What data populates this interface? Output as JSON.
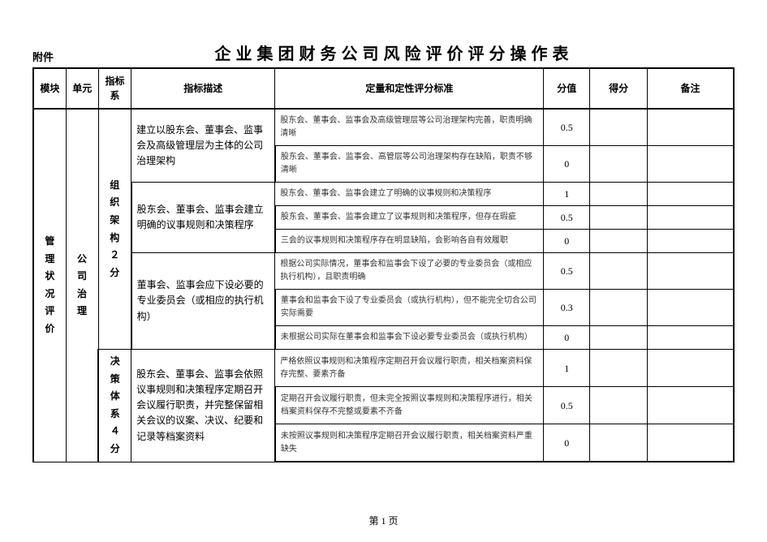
{
  "doc": {
    "attachment_label": "附件",
    "title": "企业集团财务公司风险评价评分操作表",
    "page_label": "第 1 页"
  },
  "columns": {
    "c0": "模块",
    "c1": "单元",
    "c2": "指标系",
    "c3": "指标描述",
    "c4": "定量和定性评分标准",
    "c5": "分值",
    "c6": "得分",
    "c7": "备注"
  },
  "module": "管理状况评价",
  "unit": "公司治理",
  "sys1": "组织架构２分",
  "sys2": "决策体系４分",
  "desc1": "建立以股东会、董事会、监事会及高级管理层为主体的公司治理架构",
  "desc2": "股东会、董事会、监事会建立明确的议事规则和决策程序",
  "desc3": "董事会、监事会应下设必要的专业委员会（或相应的执行机构）",
  "desc4": "股东会、董事会、监事会依照议事规则和决策程序定期召开会议履行职责，并完整保留相关会议的议案、决议、纪要和记录等档案资料",
  "rows": [
    {
      "crit": "股东会、董事会、监事会及高级管理层等公司治理架构完善，职责明确清晰",
      "val": "0.5"
    },
    {
      "crit": "股东会、董事会、监事会、高管层等公司治理架构存在缺陷，职责不够清晰",
      "val": "0"
    },
    {
      "crit": "股东会、董事会、监事会建立了明确的议事规则和决策程序",
      "val": "1"
    },
    {
      "crit": "股东会、董事会、监事会建立了议事规则和决策程序，但存在瑕疵",
      "val": "0.5"
    },
    {
      "crit": "三会的议事规则和决策程序存在明显缺陷，会影响各自有效履职",
      "val": "0"
    },
    {
      "crit": "根据公司实际情况，董事会和监事会下设了必要的专业委员会（或相应执行机构），且职责明确",
      "val": "0.5"
    },
    {
      "crit": "董事会和监事会下设了专业委员会（或执行机构），但不能完全切合公司实际需要",
      "val": "0.3"
    },
    {
      "crit": "未根据公司实际在董事会和监事会下设必要专业委员会（或执行机构）",
      "val": "0"
    },
    {
      "crit": "严格依照议事规则和决策程序定期召开会议履行职责，相关档案资料保存完整、要素齐备",
      "val": "1"
    },
    {
      "crit": "定期召开会议履行职责，但未完全按照议事规则和决策程序进行，相关档案资料保存不完整或要素不齐备",
      "val": "0.5"
    },
    {
      "crit": "未按照议事规则和决策程序定期召开会议履行职责，相关档案资料严重缺失",
      "val": "0"
    }
  ]
}
